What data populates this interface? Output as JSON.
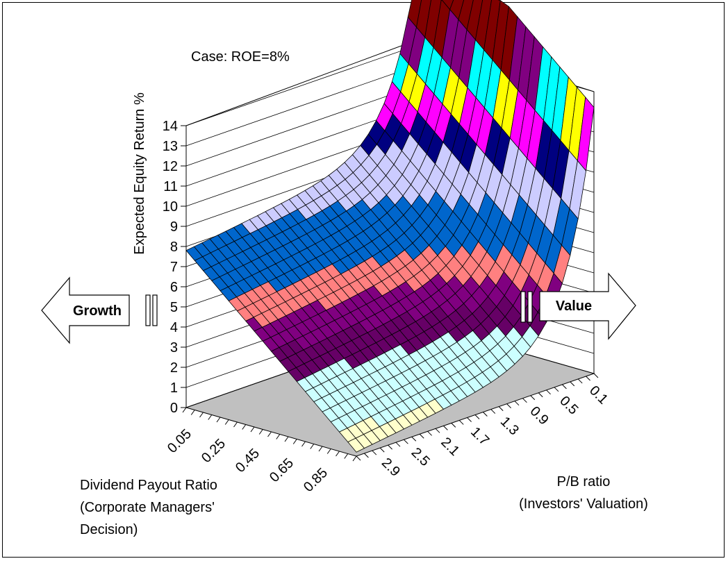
{
  "chart_data": {
    "type": "surface",
    "annotation": "Case:  ROE=8%",
    "zlabel": "Expected Equity Return %",
    "zlim": [
      0,
      14
    ],
    "z_ticks": [
      "0",
      "1",
      "2",
      "3",
      "4",
      "5",
      "6",
      "7",
      "8",
      "9",
      "10",
      "11",
      "12",
      "13",
      "14"
    ],
    "payout_ticks": [
      "0.05",
      "0.25",
      "0.45",
      "0.65",
      "0.85"
    ],
    "pb_ticks": [
      "0.1",
      "0.5",
      "0.9",
      "1.3",
      "1.7",
      "2.1",
      "2.5",
      "2.9"
    ],
    "xlabel_lines": [
      "Dividend Payout Ratio",
      "(Corporate Managers'",
      "Decision)"
    ],
    "ylabel_lines": [
      "P/B ratio",
      "(Investors' Valuation)"
    ],
    "left_arrow_label": "Growth",
    "right_arrow_label": "Value",
    "bands": [
      {
        "range": [
          0,
          1
        ],
        "color": "#ffffcc"
      },
      {
        "range": [
          1,
          2
        ],
        "color": "#ccffff"
      },
      {
        "range": [
          2,
          3
        ],
        "color": "#ccffff"
      },
      {
        "range": [
          3,
          4
        ],
        "color": "#660066"
      },
      {
        "range": [
          4,
          5
        ],
        "color": "#800080"
      },
      {
        "range": [
          5,
          6
        ],
        "color": "#ff8080"
      },
      {
        "range": [
          6,
          7
        ],
        "color": "#0066cc"
      },
      {
        "range": [
          7,
          8
        ],
        "color": "#0066cc"
      },
      {
        "range": [
          8,
          9
        ],
        "color": "#ccccff"
      },
      {
        "range": [
          9,
          10
        ],
        "color": "#ccccff"
      },
      {
        "range": [
          10,
          11
        ],
        "color": "#000080"
      },
      {
        "range": [
          11,
          12
        ],
        "color": "#ff00ff"
      },
      {
        "range": [
          12,
          13
        ],
        "color": "#ffff00"
      },
      {
        "range": [
          13,
          14
        ],
        "color": "#00ffff"
      },
      {
        "range": [
          14,
          15
        ],
        "color": "#800080"
      },
      {
        "range": [
          15,
          17
        ],
        "color": "#800000"
      },
      {
        "range": [
          17,
          100
        ],
        "color": "#008080"
      }
    ]
  }
}
